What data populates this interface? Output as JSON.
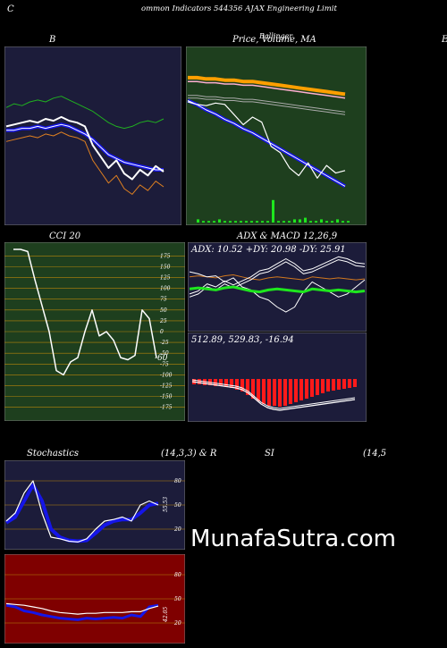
{
  "header": {
    "left_letter": "C",
    "title": "ommon  Indicators 544356  AJAX  Engineering Limit",
    "right_letter": "E"
  },
  "panels": {
    "bollinger_label": "B",
    "price_label": "Price,  Volume,  MA",
    "price_overlay": "Ballinger",
    "cci_label": "CCI 20",
    "cci_value": "-60",
    "adx_label": "ADX  & MACD 12,26,9",
    "adx_values": "ADX: 10.52  +DY: 20.98  -DY: 25.91",
    "macd_values": "512.89,  529.83,  -16.94",
    "stoch_label": "Stochastics",
    "stoch_params": "(14,3,3) & R",
    "si_label": "SI",
    "si_params": "(14,5",
    "stoch_value": "55.53",
    "rsi_value": "42.05"
  },
  "watermark": "MunafaSutra.com",
  "colors": {
    "navy": "#1c1c3a",
    "green_bg": "#1e3f1e",
    "red_bg": "#7f0000",
    "blue_line": "#1515e8",
    "orange": "#d2781e",
    "bright_green": "#1ee61e"
  },
  "chart_data": [
    {
      "type": "line",
      "title": "B",
      "series": [
        {
          "values": [
            30,
            32,
            31,
            33,
            34,
            33,
            35,
            36,
            34,
            32,
            30,
            28,
            25,
            22,
            20,
            19,
            20,
            22,
            23,
            22,
            24
          ]
        },
        {
          "values": [
            20,
            21,
            22,
            23,
            22,
            24,
            23,
            25,
            23,
            22,
            20,
            10,
            4,
            -2,
            2,
            -5,
            -8,
            -3,
            -6,
            -1,
            -4
          ]
        },
        {
          "values": [
            12,
            12,
            13,
            13,
            14,
            13,
            14,
            15,
            14,
            12,
            10,
            7,
            3,
            -1,
            -3,
            -5,
            -6,
            -7,
            -8,
            -9,
            -9
          ]
        }
      ]
    },
    {
      "type": "line",
      "title": "Price,  Volume,  MA",
      "series": [
        {
          "values": [
            49,
            49,
            48,
            48,
            47,
            47,
            46,
            46,
            45,
            44,
            43,
            42,
            41,
            40,
            39,
            38,
            37,
            36
          ]
        },
        {
          "values": [
            30,
            28,
            27,
            29,
            28,
            20,
            12,
            18,
            14,
            -5,
            -10,
            -22,
            -28,
            -18,
            -30,
            -20,
            -26,
            -24
          ]
        }
      ],
      "volume": [
        2,
        1,
        1,
        1,
        2,
        1,
        1,
        1,
        1,
        1,
        1,
        1,
        1,
        1,
        14,
        1,
        1,
        1,
        2,
        2,
        3,
        1,
        1,
        2,
        1,
        1,
        2,
        1,
        1
      ]
    },
    {
      "type": "line",
      "title": "CCI 20",
      "y_ticks": [
        175,
        150,
        125,
        100,
        75,
        50,
        25,
        0,
        -25,
        -50,
        -75,
        -100,
        -125,
        -150,
        -175
      ],
      "ylim": [
        -190,
        190
      ],
      "values": [
        190,
        190,
        185,
        120,
        60,
        0,
        -90,
        -100,
        -70,
        -60,
        0,
        50,
        -10,
        0,
        -20,
        -60,
        -65,
        -55,
        50,
        30,
        -60
      ],
      "last_value": -60
    },
    {
      "type": "line",
      "title": "ADX  & MACD 12,26,9",
      "series": [
        {
          "name": "ADX",
          "values": [
            20,
            21,
            20,
            19,
            21,
            22,
            20,
            18,
            17,
            19,
            20,
            19,
            18,
            17,
            20,
            19,
            18,
            19,
            18,
            17,
            18
          ]
        },
        {
          "name": "+DY",
          "values": [
            5,
            8,
            15,
            12,
            18,
            14,
            18,
            22,
            28,
            30,
            35,
            40,
            35,
            28,
            30,
            34,
            38,
            42,
            40,
            36,
            35
          ]
        },
        {
          "name": "-DY",
          "values": [
            30,
            28,
            25,
            26,
            20,
            24,
            15,
            12,
            5,
            2,
            -5,
            -10,
            -5,
            10,
            20,
            15,
            10,
            5,
            8,
            15,
            22
          ]
        }
      ],
      "adx": 10.52,
      "plus_dy": 20.98,
      "minus_dy": 25.91,
      "macd": 512.89,
      "signal": 529.83,
      "histogram": -16.94
    },
    {
      "type": "line",
      "title": "Stochastics (14,3,3)",
      "y_ticks": [
        80,
        50,
        20
      ],
      "ylim": [
        0,
        100
      ],
      "series": [
        {
          "values": [
            30,
            40,
            65,
            80,
            40,
            10,
            8,
            5,
            4,
            8,
            20,
            30,
            32,
            35,
            30,
            50,
            55,
            50
          ]
        },
        {
          "values": [
            28,
            35,
            55,
            75,
            55,
            20,
            10,
            6,
            5,
            6,
            15,
            25,
            30,
            32,
            32,
            40,
            50,
            52
          ]
        }
      ],
      "last_value": 55.53
    },
    {
      "type": "line",
      "title": "RSI (14,5",
      "y_ticks": [
        80,
        50,
        20
      ],
      "ylim": [
        0,
        100
      ],
      "series": [
        {
          "values": [
            42,
            40,
            35,
            33,
            30,
            28,
            26,
            25,
            24,
            26,
            25,
            26,
            27,
            26,
            30,
            28,
            40,
            42
          ]
        },
        {
          "values": [
            44,
            43,
            42,
            40,
            38,
            35,
            33,
            32,
            31,
            32,
            32,
            33,
            33,
            33,
            34,
            34,
            38,
            41
          ]
        }
      ],
      "last_value": 42.05
    }
  ]
}
